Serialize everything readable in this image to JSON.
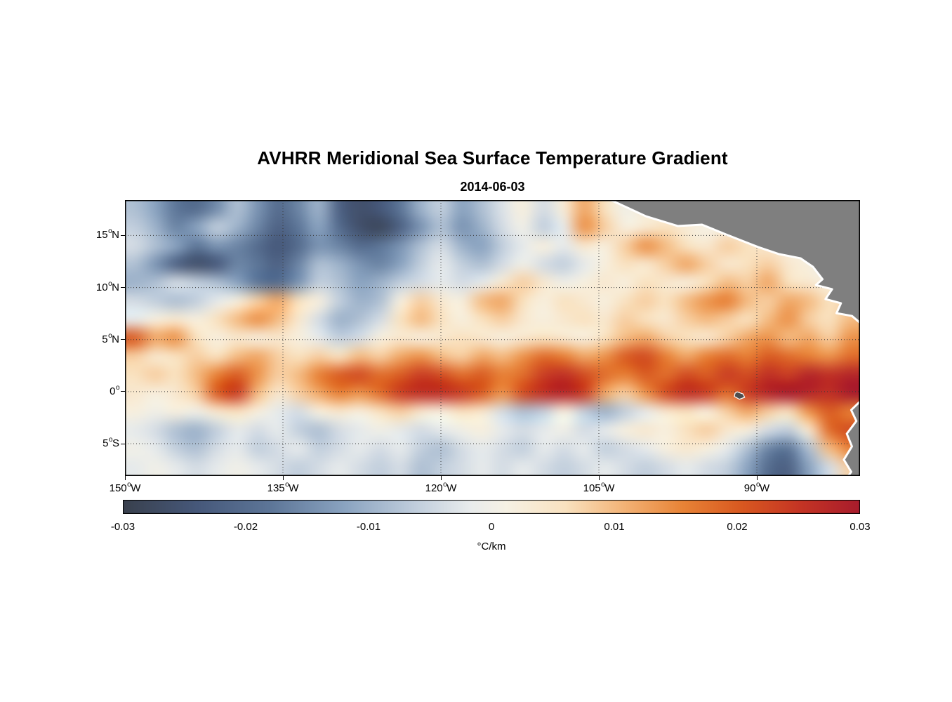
{
  "chart_data": {
    "type": "heatmap",
    "title": "AVHRR Meridional Sea Surface Temperature Gradient",
    "subtitle": "2014-06-03",
    "x_axis": {
      "unit": "degrees longitude west",
      "range_deg_w": [
        150,
        80.2
      ],
      "ticks": [
        {
          "value": 150,
          "deg": "150",
          "hem": "W"
        },
        {
          "value": 135,
          "deg": "135",
          "hem": "W"
        },
        {
          "value": 120,
          "deg": "120",
          "hem": "W"
        },
        {
          "value": 105,
          "deg": "105",
          "hem": "W"
        },
        {
          "value": 90,
          "deg": "90",
          "hem": "W"
        }
      ]
    },
    "y_axis": {
      "unit": "degrees latitude",
      "range_deg_n": [
        -8.1,
        18.4
      ],
      "ticks": [
        {
          "value": 15,
          "deg": "15",
          "hem": "N"
        },
        {
          "value": 10,
          "deg": "10",
          "hem": "N"
        },
        {
          "value": 5,
          "deg": "5",
          "hem": "N"
        },
        {
          "value": 0,
          "deg": "0",
          "hem": ""
        },
        {
          "value": -5,
          "deg": "5",
          "hem": "S"
        }
      ]
    },
    "grid_lines": {
      "style": "dotted",
      "color": "#3a3a3a"
    },
    "frame_color": "#000000",
    "colorbar": {
      "min": -0.03,
      "max": 0.03,
      "ticks": [
        "-0.03",
        "-0.02",
        "-0.01",
        "0",
        "0.01",
        "0.02",
        "0.03"
      ],
      "label": "°C/km"
    },
    "colormap": [
      {
        "t": 0.0,
        "c": "#39404d"
      },
      {
        "t": 0.1,
        "c": "#46587a"
      },
      {
        "t": 0.2,
        "c": "#5d7698"
      },
      {
        "t": 0.3,
        "c": "#8aa3c0"
      },
      {
        "t": 0.4,
        "c": "#c2cfdd"
      },
      {
        "t": 0.47,
        "c": "#e8ebec"
      },
      {
        "t": 0.52,
        "c": "#f6f1e4"
      },
      {
        "t": 0.6,
        "c": "#f9e2c0"
      },
      {
        "t": 0.68,
        "c": "#f3b376"
      },
      {
        "t": 0.76,
        "c": "#e88336"
      },
      {
        "t": 0.84,
        "c": "#d85820"
      },
      {
        "t": 0.92,
        "c": "#c43424"
      },
      {
        "t": 1.0,
        "c": "#a81c2c"
      }
    ],
    "land": {
      "fill": "#7f7f7f",
      "outline": "#ffffff",
      "regions": [
        {
          "name": "central-america-mexico",
          "coast": [
            [
              0.661,
              0.0
            ],
            [
              0.709,
              0.059
            ],
            [
              0.752,
              0.094
            ],
            [
              0.785,
              0.089
            ],
            [
              0.818,
              0.125
            ],
            [
              0.861,
              0.17
            ],
            [
              0.89,
              0.196
            ],
            [
              0.919,
              0.211
            ],
            [
              0.936,
              0.242
            ],
            [
              0.949,
              0.287
            ],
            [
              0.94,
              0.308
            ],
            [
              0.962,
              0.323
            ],
            [
              0.953,
              0.359
            ],
            [
              0.974,
              0.374
            ],
            [
              0.968,
              0.41
            ],
            [
              0.989,
              0.42
            ],
            [
              1.0,
              0.445
            ]
          ],
          "corners": [
            [
              1.0,
              0.0
            ]
          ]
        },
        {
          "name": "south-america",
          "coast": [
            [
              1.0,
              0.73
            ],
            [
              0.988,
              0.761
            ],
            [
              0.995,
              0.801
            ],
            [
              0.982,
              0.847
            ],
            [
              0.989,
              0.893
            ],
            [
              0.978,
              0.941
            ],
            [
              0.988,
              0.985
            ],
            [
              0.984,
              1.0
            ]
          ],
          "corners": [
            [
              1.0,
              1.0
            ]
          ]
        }
      ],
      "islands": [
        {
          "name": "galapagos",
          "fill": "#4d4d4d",
          "points": [
            [
              0.833,
              0.695
            ],
            [
              0.841,
              0.703
            ],
            [
              0.843,
              0.715
            ],
            [
              0.836,
              0.722
            ],
            [
              0.829,
              0.712
            ],
            [
              0.83,
              0.7
            ]
          ]
        }
      ]
    },
    "field": {
      "units": "°C/km",
      "scale": 0.001,
      "ncols": 36,
      "nrows": 15,
      "values": [
        [
          -8,
          -12,
          -18,
          -20,
          -15,
          -8,
          -14,
          -20,
          -16,
          -10,
          -22,
          -26,
          -24,
          -18,
          -10,
          -6,
          -12,
          -8,
          -3,
          2,
          -4,
          3,
          12,
          6,
          0,
          3,
          2,
          4,
          2,
          0,
          2,
          0,
          -2,
          -5,
          -8,
          -6
        ],
        [
          -6,
          -10,
          -16,
          -12,
          -6,
          -10,
          -16,
          -22,
          -18,
          -12,
          -20,
          -26,
          -28,
          -22,
          -14,
          -8,
          -14,
          -10,
          -4,
          0,
          -6,
          -2,
          14,
          8,
          2,
          4,
          6,
          3,
          1,
          2,
          1,
          0,
          -2,
          -4,
          -3,
          -2
        ],
        [
          -4,
          -8,
          -12,
          -18,
          -14,
          -16,
          -20,
          -24,
          -20,
          -14,
          -16,
          -20,
          -18,
          -14,
          -8,
          -4,
          -10,
          -12,
          -6,
          -2,
          2,
          -2,
          4,
          2,
          8,
          14,
          10,
          6,
          4,
          8,
          6,
          4,
          2,
          0,
          -2,
          -3
        ],
        [
          -8,
          -14,
          -22,
          -26,
          -24,
          -16,
          -18,
          -22,
          -16,
          -8,
          -10,
          -14,
          -16,
          -12,
          -6,
          -2,
          -6,
          -8,
          -4,
          0,
          -4,
          -6,
          -2,
          2,
          6,
          4,
          8,
          12,
          8,
          4,
          6,
          8,
          4,
          2,
          -2,
          -4
        ],
        [
          -10,
          -8,
          -4,
          -6,
          -8,
          -12,
          -18,
          -20,
          -14,
          -6,
          -8,
          -12,
          -10,
          -6,
          -4,
          -2,
          -4,
          -2,
          4,
          8,
          4,
          0,
          2,
          4,
          2,
          6,
          4,
          2,
          6,
          10,
          8,
          12,
          6,
          4,
          2,
          4
        ],
        [
          -4,
          -6,
          -8,
          -6,
          -2,
          2,
          8,
          12,
          6,
          2,
          -6,
          -10,
          -8,
          2,
          8,
          4,
          2,
          10,
          12,
          6,
          2,
          6,
          4,
          2,
          6,
          8,
          6,
          10,
          14,
          16,
          10,
          8,
          12,
          10,
          6,
          8
        ],
        [
          -2,
          2,
          4,
          2,
          6,
          10,
          14,
          10,
          4,
          -4,
          -10,
          -8,
          -4,
          6,
          10,
          6,
          2,
          6,
          8,
          4,
          2,
          4,
          6,
          4,
          8,
          6,
          4,
          8,
          10,
          8,
          6,
          10,
          14,
          8,
          6,
          10
        ],
        [
          20,
          12,
          14,
          6,
          2,
          4,
          2,
          4,
          2,
          -2,
          -6,
          -4,
          2,
          4,
          2,
          4,
          6,
          4,
          2,
          4,
          6,
          4,
          2,
          6,
          10,
          12,
          8,
          6,
          4,
          8,
          12,
          14,
          10,
          12,
          8,
          14
        ],
        [
          8,
          4,
          6,
          8,
          6,
          10,
          12,
          8,
          6,
          8,
          6,
          10,
          8,
          12,
          14,
          10,
          8,
          12,
          10,
          14,
          18,
          16,
          12,
          14,
          20,
          22,
          16,
          12,
          16,
          18,
          16,
          20,
          18,
          16,
          14,
          18
        ],
        [
          6,
          8,
          6,
          10,
          16,
          20,
          14,
          8,
          10,
          16,
          20,
          22,
          18,
          20,
          24,
          22,
          18,
          20,
          16,
          18,
          24,
          26,
          22,
          18,
          16,
          20,
          18,
          22,
          20,
          24,
          22,
          26,
          24,
          28,
          26,
          28
        ],
        [
          4,
          2,
          4,
          8,
          20,
          24,
          10,
          4,
          8,
          12,
          16,
          14,
          18,
          24,
          26,
          26,
          24,
          20,
          14,
          22,
          26,
          28,
          24,
          12,
          8,
          14,
          22,
          26,
          24,
          18,
          24,
          28,
          30,
          28,
          26,
          30
        ],
        [
          2,
          0,
          2,
          0,
          4,
          6,
          2,
          -2,
          -4,
          2,
          4,
          2,
          6,
          8,
          4,
          2,
          6,
          4,
          -4,
          -8,
          -6,
          2,
          -6,
          -10,
          -6,
          -2,
          4,
          6,
          2,
          8,
          12,
          8,
          6,
          14,
          20,
          16
        ],
        [
          -2,
          -4,
          -8,
          -10,
          -6,
          -2,
          -4,
          -2,
          -6,
          -8,
          -4,
          -2,
          0,
          -2,
          -4,
          -2,
          0,
          2,
          -2,
          -4,
          -2,
          0,
          -4,
          -2,
          2,
          4,
          2,
          6,
          8,
          4,
          2,
          -4,
          -6,
          4,
          18,
          22
        ],
        [
          0,
          -2,
          -6,
          -8,
          -4,
          -2,
          -6,
          -4,
          -2,
          -6,
          -4,
          -2,
          -4,
          -2,
          -6,
          -8,
          -4,
          -2,
          -4,
          -6,
          -2,
          -4,
          -2,
          -6,
          -4,
          -2,
          2,
          4,
          2,
          -2,
          -8,
          -16,
          -18,
          -8,
          10,
          16
        ],
        [
          -2,
          0,
          -2,
          -4,
          -2,
          0,
          -2,
          -4,
          -6,
          -4,
          -2,
          -4,
          -6,
          -4,
          -8,
          -6,
          -4,
          -2,
          -4,
          -2,
          -4,
          -6,
          -4,
          -2,
          -4,
          -6,
          -4,
          -2,
          -4,
          -6,
          -12,
          -20,
          -22,
          -12,
          -4,
          8
        ]
      ]
    }
  }
}
